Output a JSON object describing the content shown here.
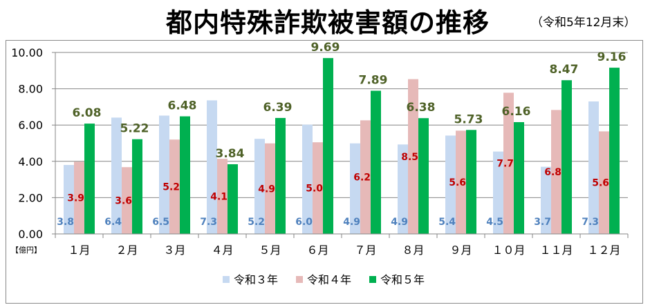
{
  "chart_data": {
    "type": "bar",
    "title": "都内特殊詐欺被害額の推移",
    "subtitle": "（令和5年12月末）",
    "ylabel": "【億円】",
    "ylim": [
      0,
      10
    ],
    "yticks": [
      "0.00",
      "2.00",
      "4.00",
      "6.00",
      "8.00",
      "10.00"
    ],
    "grid": true,
    "legend_position": "bottom",
    "categories": [
      "１月",
      "２月",
      "３月",
      "４月",
      "５月",
      "６月",
      "７月",
      "８月",
      "９月",
      "１０月",
      "１１月",
      "１２月"
    ],
    "series": [
      {
        "name": "令和３年",
        "color": "#c6d9f1",
        "label_color": "#4f81bd",
        "values": [
          3.8,
          6.41,
          6.52,
          7.36,
          5.24,
          6.02,
          4.99,
          4.93,
          5.42,
          4.54,
          3.7,
          7.3
        ]
      },
      {
        "name": "令和４年",
        "color": "#e6b9b8",
        "label_color": "#c00000",
        "values": [
          3.98,
          3.68,
          5.2,
          4.14,
          4.99,
          5.05,
          6.26,
          8.53,
          5.69,
          7.78,
          6.83,
          5.65
        ]
      },
      {
        "name": "令和５年",
        "color": "#00b050",
        "label_color": "#4f6228",
        "values": [
          6.08,
          5.22,
          6.48,
          3.84,
          6.39,
          9.69,
          7.89,
          6.38,
          5.73,
          6.16,
          8.47,
          9.16
        ]
      }
    ]
  }
}
